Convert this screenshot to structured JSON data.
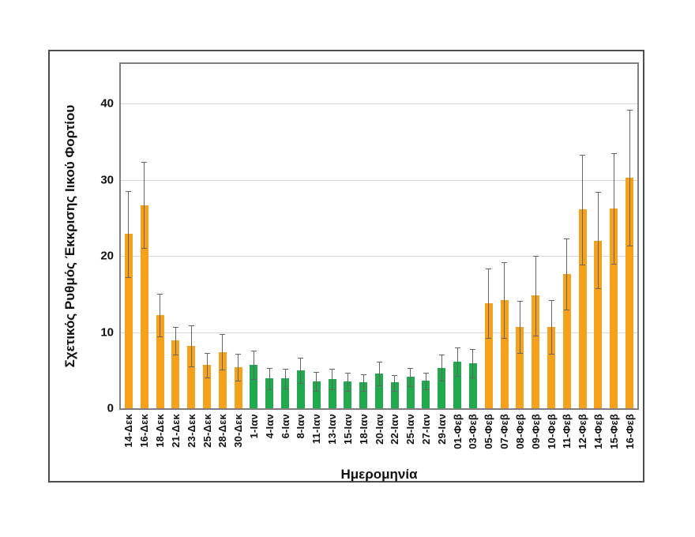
{
  "chart_data": {
    "type": "bar",
    "title": "",
    "xlabel": "Ημερομηνία",
    "ylabel": "Σχετικός Ρυθμός Έκκρισης Ιικού Φορτίου",
    "ylim": [
      0,
      45.2
    ],
    "yticks": [
      0,
      10,
      20,
      30,
      40
    ],
    "grid": true,
    "legend": "none",
    "palette": {
      "orange": "#F6A11B",
      "green": "#21A94E"
    },
    "error_bar_color": "#646464",
    "categories": [
      "14-Δεκ",
      "16-Δεκ",
      "18-Δεκ",
      "21-Δεκ",
      "23-Δεκ",
      "25-Δεκ",
      "28-Δεκ",
      "30-Δεκ",
      "1-Ιαν",
      "4-Ιαν",
      "6-Ιαν",
      "8-Ιαν",
      "11-Ιαν",
      "13-Ιαν",
      "15-Ιαν",
      "18-Ιαν",
      "20-Ιαν",
      "22-Ιαν",
      "25-Ιαν",
      "27-Ιαν",
      "29-Ιαν",
      "01-Φεβ",
      "03-Φεβ",
      "05-Φεβ",
      "07-Φεβ",
      "08-Φεβ",
      "09-Φεβ",
      "10-Φεβ",
      "11-Φεβ",
      "12-Φεβ",
      "14-Φεβ",
      "15-Φεβ",
      "16-Φεβ"
    ],
    "values": [
      22.9,
      26.6,
      12.2,
      8.9,
      8.2,
      5.7,
      7.4,
      5.4,
      5.7,
      3.9,
      3.9,
      5.0,
      3.5,
      3.8,
      3.5,
      3.4,
      4.6,
      3.4,
      4.1,
      3.6,
      5.3,
      6.1,
      5.9,
      13.8,
      14.2,
      10.7,
      14.8,
      10.7,
      17.6,
      26.1,
      22.0,
      26.2,
      30.3
    ],
    "error_low": [
      17.2,
      21.0,
      9.4,
      7.1,
      5.5,
      4.0,
      5.1,
      3.6,
      3.8,
      2.5,
      2.6,
      3.3,
      2.3,
      2.5,
      2.3,
      2.3,
      3.0,
      2.3,
      2.9,
      2.5,
      3.6,
      4.2,
      4.0,
      9.2,
      9.2,
      7.3,
      9.5,
      7.2,
      13.0,
      18.9,
      15.8,
      19.0,
      21.4
    ],
    "error_high": [
      28.5,
      32.3,
      15.0,
      10.7,
      10.9,
      7.3,
      9.7,
      7.2,
      7.6,
      5.3,
      5.2,
      6.6,
      4.8,
      5.2,
      4.7,
      4.5,
      6.1,
      4.4,
      5.3,
      4.7,
      7.1,
      8.0,
      7.8,
      18.4,
      19.2,
      14.1,
      20.0,
      14.2,
      22.3,
      33.3,
      28.4,
      33.5,
      39.2
    ],
    "color_keys": [
      "orange",
      "orange",
      "orange",
      "orange",
      "orange",
      "orange",
      "orange",
      "orange",
      "green",
      "green",
      "green",
      "green",
      "green",
      "green",
      "green",
      "green",
      "green",
      "green",
      "green",
      "green",
      "green",
      "green",
      "green",
      "orange",
      "orange",
      "orange",
      "orange",
      "orange",
      "orange",
      "orange",
      "orange",
      "orange",
      "orange"
    ]
  }
}
